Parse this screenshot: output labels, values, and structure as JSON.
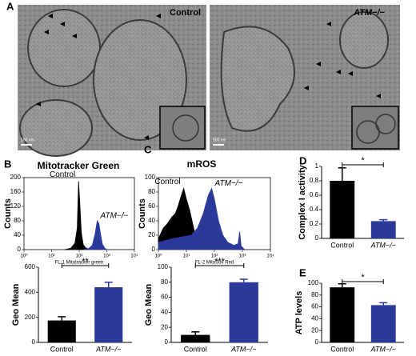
{
  "figure": {
    "panel_label": "A",
    "images": [
      {
        "label": "Control",
        "scale": "500 nm"
      },
      {
        "label": "ATM−/−",
        "scale": "500 nm"
      }
    ]
  },
  "chart_data": [
    {
      "type": "area",
      "panel": "B",
      "title": "Mitotracker Green",
      "ylabel": "Counts",
      "xlabel": "FL-1 Mitotracker green",
      "log_x": true,
      "xlim": [
        1,
        10000
      ],
      "xticks": [
        {
          "value": 1,
          "label": "10⁰"
        },
        {
          "value": 10,
          "label": "10¹"
        },
        {
          "value": 100,
          "label": "10²"
        },
        {
          "value": 1000,
          "label": "10³"
        },
        {
          "value": 10000,
          "label": "10⁴"
        }
      ],
      "ylim": [
        0,
        200
      ],
      "yticks": [
        0,
        40,
        80,
        120,
        160,
        200
      ],
      "series": [
        {
          "name": "Control",
          "color": "#000000",
          "x": [
            30,
            50,
            70,
            85,
            95,
            105,
            120,
            140,
            170,
            220,
            300
          ],
          "values": [
            0,
            4,
            18,
            60,
            190,
            130,
            45,
            14,
            5,
            2,
            0
          ]
        },
        {
          "name": "ATM−/−",
          "color": "#2b3a9a",
          "x": [
            150,
            220,
            300,
            380,
            450,
            520,
            600,
            700,
            850,
            1000
          ],
          "values": [
            0,
            3,
            12,
            45,
            80,
            72,
            40,
            14,
            4,
            0
          ]
        }
      ]
    },
    {
      "type": "bar",
      "ylabel": "Geo Mean",
      "categories": [
        "Control",
        "ATM−/−"
      ],
      "values": [
        175,
        440
      ],
      "errors": [
        30,
        40
      ],
      "colors": [
        "#000000",
        "#2b3a9a"
      ],
      "ylim": [
        0,
        600
      ],
      "yticks": [
        0,
        200,
        400,
        600
      ],
      "significance": "**"
    },
    {
      "type": "area",
      "panel": "C",
      "title": "mROS",
      "ylabel": "Counts",
      "xlabel": "FL-2 MitoSox Red",
      "log_x": true,
      "xlim": [
        1,
        10000
      ],
      "xticks": [
        {
          "value": 1,
          "label": "10⁰"
        },
        {
          "value": 10,
          "label": "10¹"
        },
        {
          "value": 100,
          "label": "10²"
        },
        {
          "value": 1000,
          "label": "10³"
        },
        {
          "value": 10000,
          "label": "10⁴"
        }
      ],
      "ylim": [
        0,
        100
      ],
      "yticks": [
        0,
        20,
        40,
        60,
        80,
        100
      ],
      "series": [
        {
          "name": "Control",
          "color": "#000000",
          "x": [
            1,
            1.5,
            2,
            3,
            4,
            5,
            6,
            7,
            8,
            10,
            13,
            17,
            22,
            30,
            40
          ],
          "values": [
            15,
            30,
            35,
            45,
            50,
            60,
            70,
            78,
            85,
            70,
            55,
            35,
            15,
            5,
            0
          ]
        },
        {
          "name": "ATM−/−",
          "color": "#2b3a9a",
          "x": [
            1,
            3,
            8,
            15,
            25,
            40,
            60,
            80,
            100,
            140,
            200,
            300,
            500,
            700,
            800,
            900,
            1200
          ],
          "values": [
            10,
            15,
            18,
            20,
            30,
            50,
            75,
            85,
            70,
            40,
            20,
            10,
            6,
            8,
            25,
            5,
            0
          ]
        }
      ]
    },
    {
      "type": "bar",
      "ylabel": "Geo Mean",
      "categories": [
        "Control",
        "ATM−/−"
      ],
      "values": [
        10,
        80
      ],
      "errors": [
        4,
        4
      ],
      "colors": [
        "#000000",
        "#2b3a9a"
      ],
      "ylim": [
        0,
        100
      ],
      "yticks": [
        0,
        20,
        40,
        60,
        80,
        100
      ],
      "significance": "***"
    },
    {
      "type": "bar",
      "panel": "D",
      "ylabel": "Complex I activity",
      "categories": [
        "Control",
        "ATM−/−"
      ],
      "values": [
        0.8,
        0.24
      ],
      "errors": [
        0.18,
        0.02
      ],
      "colors": [
        "#000000",
        "#2b3a9a"
      ],
      "ylim": [
        0,
        1
      ],
      "yticks": [
        0,
        0.2,
        0.4,
        0.6,
        0.8,
        1.0
      ],
      "significance": "*"
    },
    {
      "type": "bar",
      "panel": "E",
      "ylabel": "ATP levels",
      "categories": [
        "Control",
        "ATM−/−"
      ],
      "values": [
        93,
        63
      ],
      "errors": [
        6,
        4
      ],
      "colors": [
        "#000000",
        "#2b3a9a"
      ],
      "ylim": [
        0,
        100
      ],
      "yticks": [
        0,
        20,
        40,
        60,
        80,
        100
      ],
      "significance": "*"
    }
  ]
}
